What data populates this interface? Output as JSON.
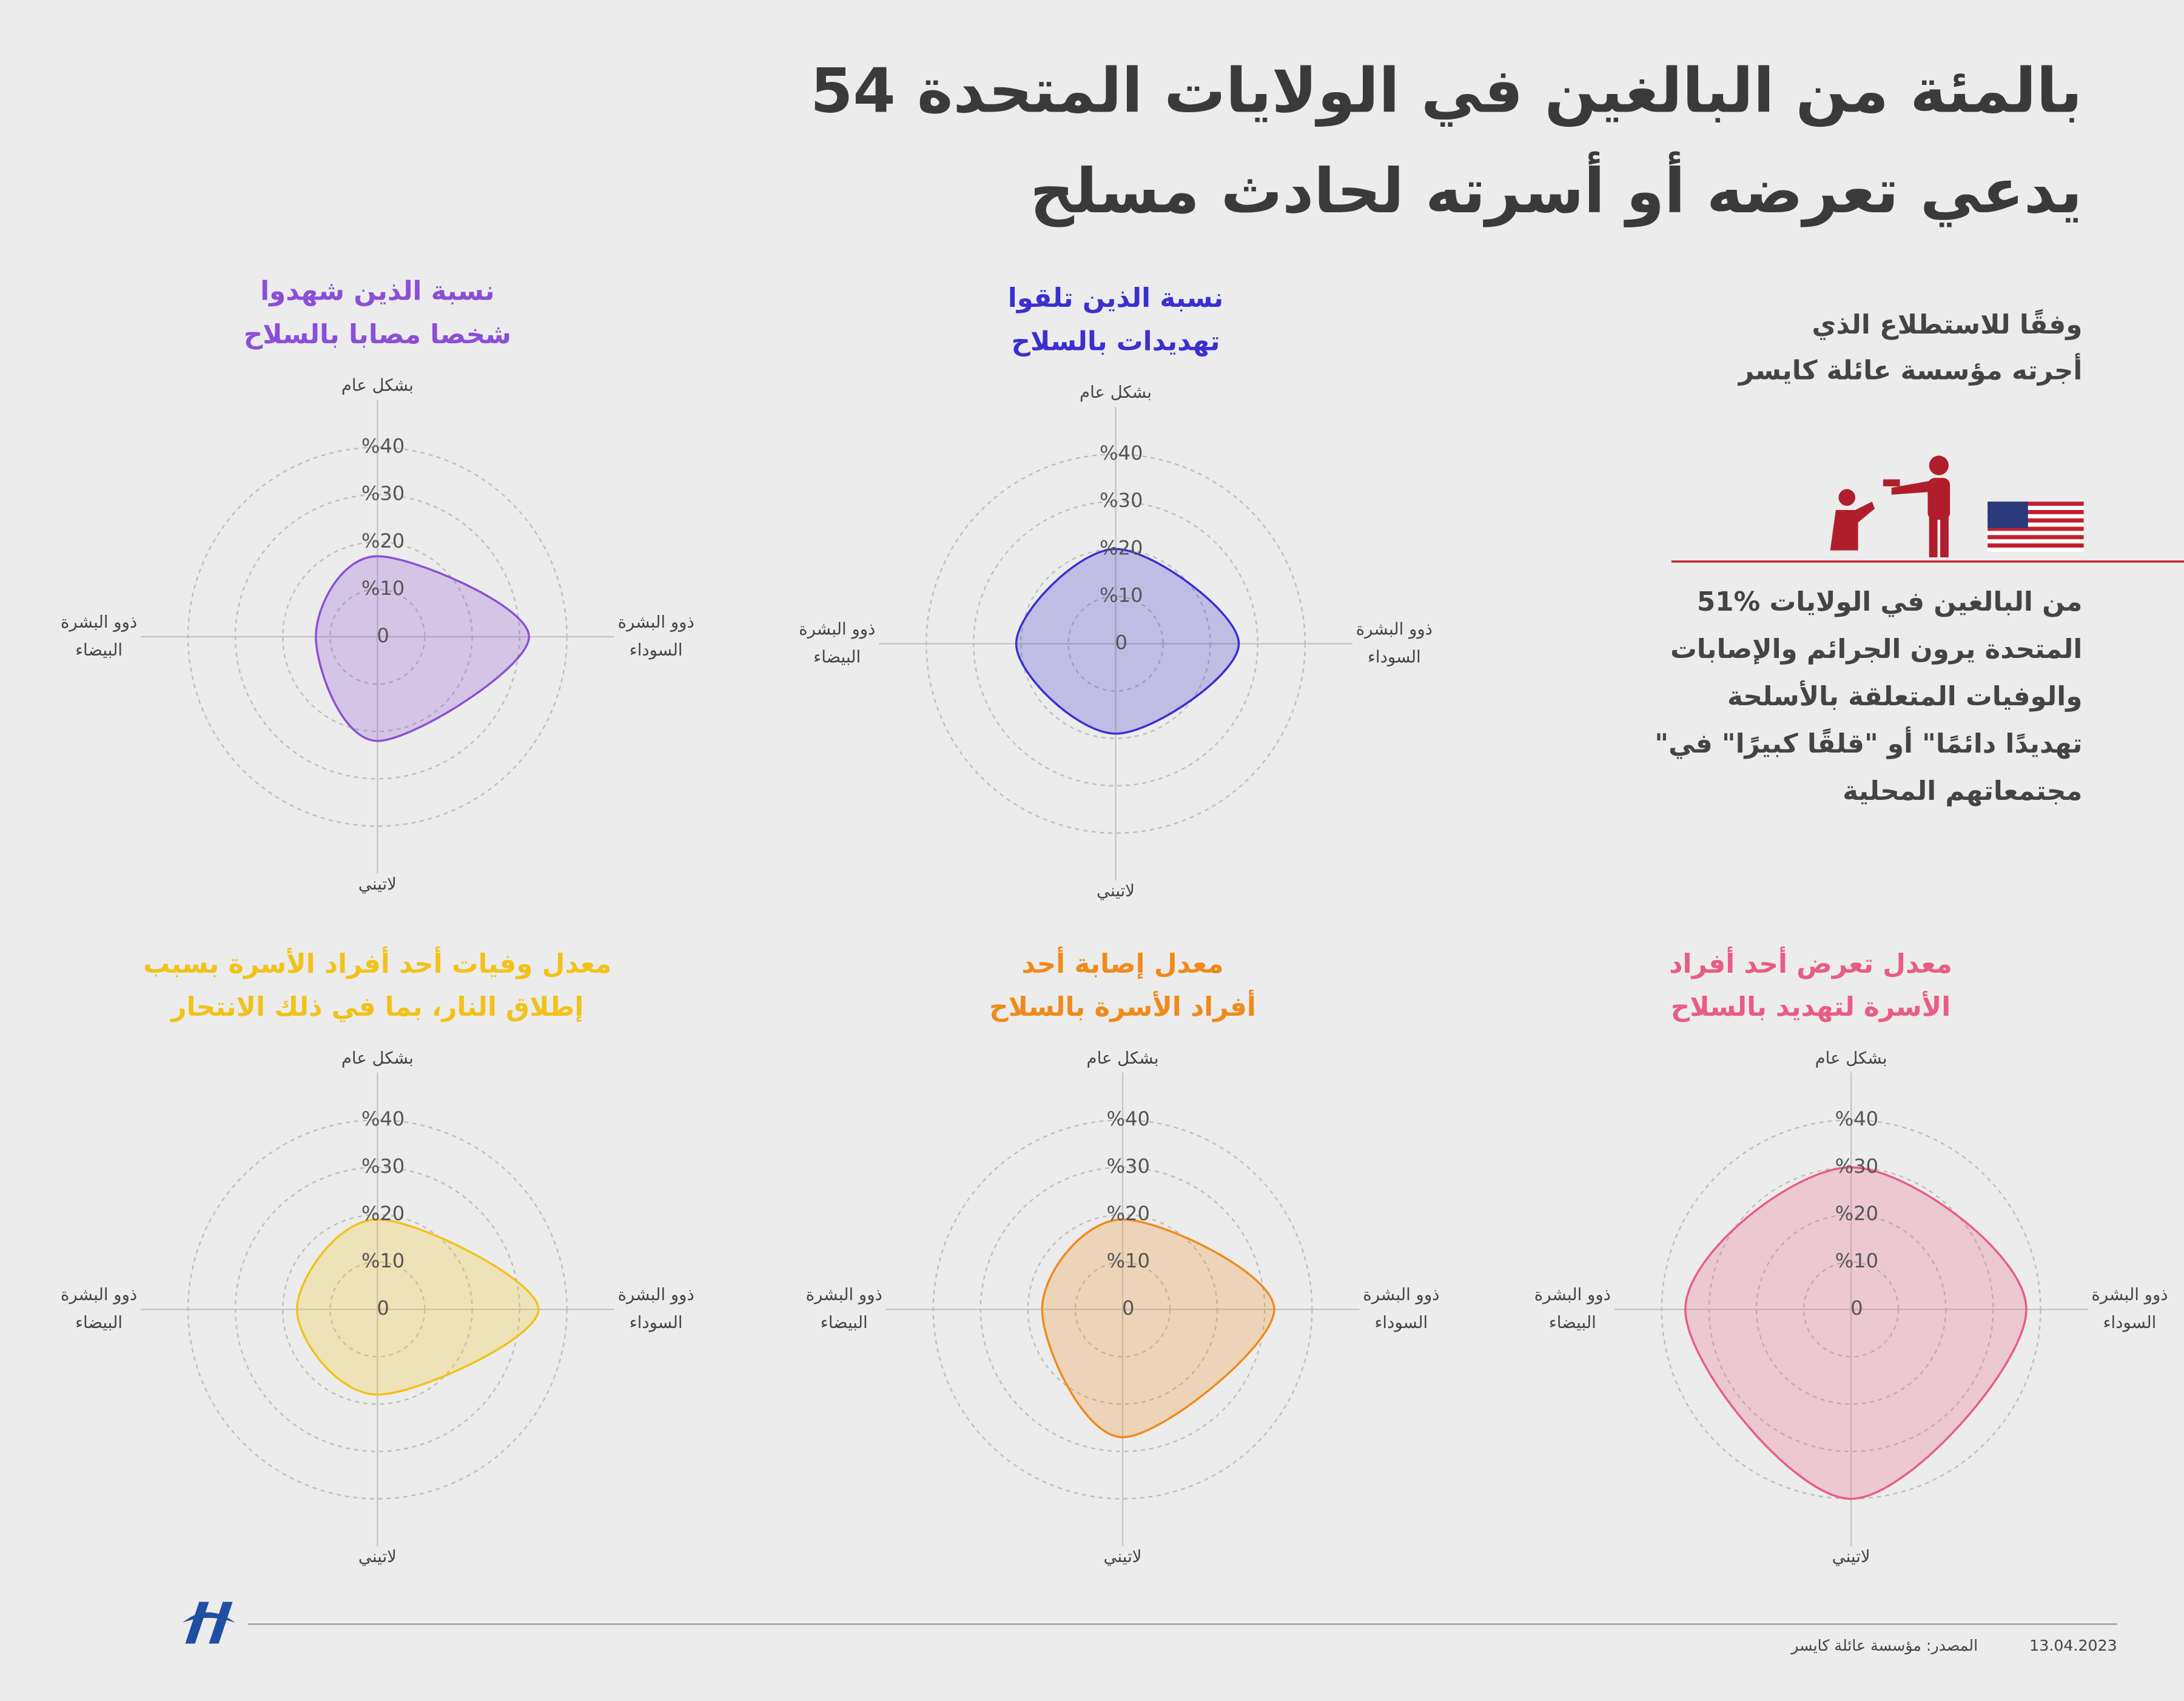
{
  "header": {
    "title": [
      "54 بالمئة من البالغين في الولايات المتحدة",
      "يدعي تعرضه أو أسرته لحادث مسلح"
    ],
    "subtitle": [
      "وفقًا للاستطلاع الذي",
      "أجرته مؤسسة عائلة كايسر"
    ],
    "description": [
      "51% من البالغين في الولايات",
      "المتحدة يرون الجرائم والإصابات",
      "والوفيات المتعلقة بالأسلحة",
      "\"تهديدًا دائمًا\" أو \"قلقًا كبيرًا\" في",
      "مجتمعاتهم المحلية"
    ]
  },
  "footer": {
    "source": "المصدر: مؤسسة عائلة كايسر",
    "date": "13.04.2023"
  },
  "chart_data": [
    {
      "type": "radar",
      "title": [
        "نسبة الذين شهدوا",
        "شخصا مصابا بالسلاح"
      ],
      "categories": [
        [
          "بشكل عام"
        ],
        [
          "ذوو البشرة",
          "السوداء"
        ],
        [
          "لاتيني"
        ],
        [
          "ذوو البشرة",
          "البيضاء"
        ]
      ],
      "series": [
        {
          "color": "#8a4fd8",
          "values": [
            17,
            32,
            22,
            13
          ]
        }
      ],
      "rlim": [
        0,
        40
      ],
      "rticks": [
        0,
        {
          "value": 10,
          "label": "%10"
        },
        {
          "value": 20,
          "label": "%20"
        },
        {
          "value": 30,
          "label": "%30"
        },
        {
          "value": 40,
          "label": "%40"
        }
      ]
    },
    {
      "type": "radar",
      "title": [
        "نسبة الذين تلقوا",
        "تهديدات بالسلاح"
      ],
      "categories": [
        [
          "بشكل عام"
        ],
        [
          "ذوو البشرة",
          "السوداء"
        ],
        [
          "لاتيني"
        ],
        [
          "ذوو البشرة",
          "البيضاء"
        ]
      ],
      "series": [
        {
          "color": "#3a2fd0",
          "values": [
            20,
            26,
            19,
            21
          ]
        }
      ],
      "rlim": [
        0,
        40
      ],
      "rticks": [
        0,
        {
          "value": 10,
          "label": "%10"
        },
        {
          "value": 20,
          "label": "%20"
        },
        {
          "value": 30,
          "label": "%30"
        },
        {
          "value": 40,
          "label": "%40"
        }
      ]
    },
    {
      "type": "radar",
      "title": [
        "معدل وفيات أحد أفراد الأسرة بسبب",
        "إطلاق النار، بما في ذلك الانتحار"
      ],
      "categories": [
        [
          "بشكل عام"
        ],
        [
          "ذوو البشرة",
          "السوداء"
        ],
        [
          "لاتيني"
        ],
        [
          "ذوو البشرة",
          "البيضاء"
        ]
      ],
      "series": [
        {
          "color": "#f2c21a",
          "values": [
            19,
            34,
            18,
            17
          ]
        }
      ],
      "rlim": [
        0,
        40
      ],
      "rticks": [
        0,
        {
          "value": 10,
          "label": "%10"
        },
        {
          "value": 20,
          "label": "%20"
        },
        {
          "value": 30,
          "label": "%30"
        },
        {
          "value": 40,
          "label": "%40"
        }
      ]
    },
    {
      "type": "radar",
      "title": [
        "معدل إصابة أحد",
        "أفراد الأسرة بالسلاح"
      ],
      "categories": [
        [
          "بشكل عام"
        ],
        [
          "ذوو البشرة",
          "السوداء"
        ],
        [
          "لاتيني"
        ],
        [
          "ذوو البشرة",
          "البيضاء"
        ]
      ],
      "series": [
        {
          "color": "#f08a1a",
          "values": [
            19,
            32,
            27,
            17
          ]
        }
      ],
      "rlim": [
        0,
        40
      ],
      "rticks": [
        0,
        {
          "value": 10,
          "label": "%10"
        },
        {
          "value": 20,
          "label": "%20"
        },
        {
          "value": 30,
          "label": "%30"
        },
        {
          "value": 40,
          "label": "%40"
        }
      ]
    },
    {
      "type": "radar",
      "title": [
        "معدل تعرض أحد أفراد",
        "الأسرة لتهديد بالسلاح"
      ],
      "categories": [
        [
          "بشكل عام"
        ],
        [
          "ذوو البشرة",
          "السوداء"
        ],
        [
          "لاتيني"
        ],
        [
          "ذوو البشرة",
          "البيضاء"
        ]
      ],
      "series": [
        {
          "color": "#e85c85",
          "values": [
            30,
            37,
            40,
            35
          ]
        }
      ],
      "rlim": [
        0,
        40
      ],
      "rticks": [
        0,
        {
          "value": 10,
          "label": "%10"
        },
        {
          "value": 20,
          "label": "%20"
        },
        {
          "value": 30,
          "label": "%30"
        },
        {
          "value": 40,
          "label": "%40"
        }
      ]
    }
  ]
}
